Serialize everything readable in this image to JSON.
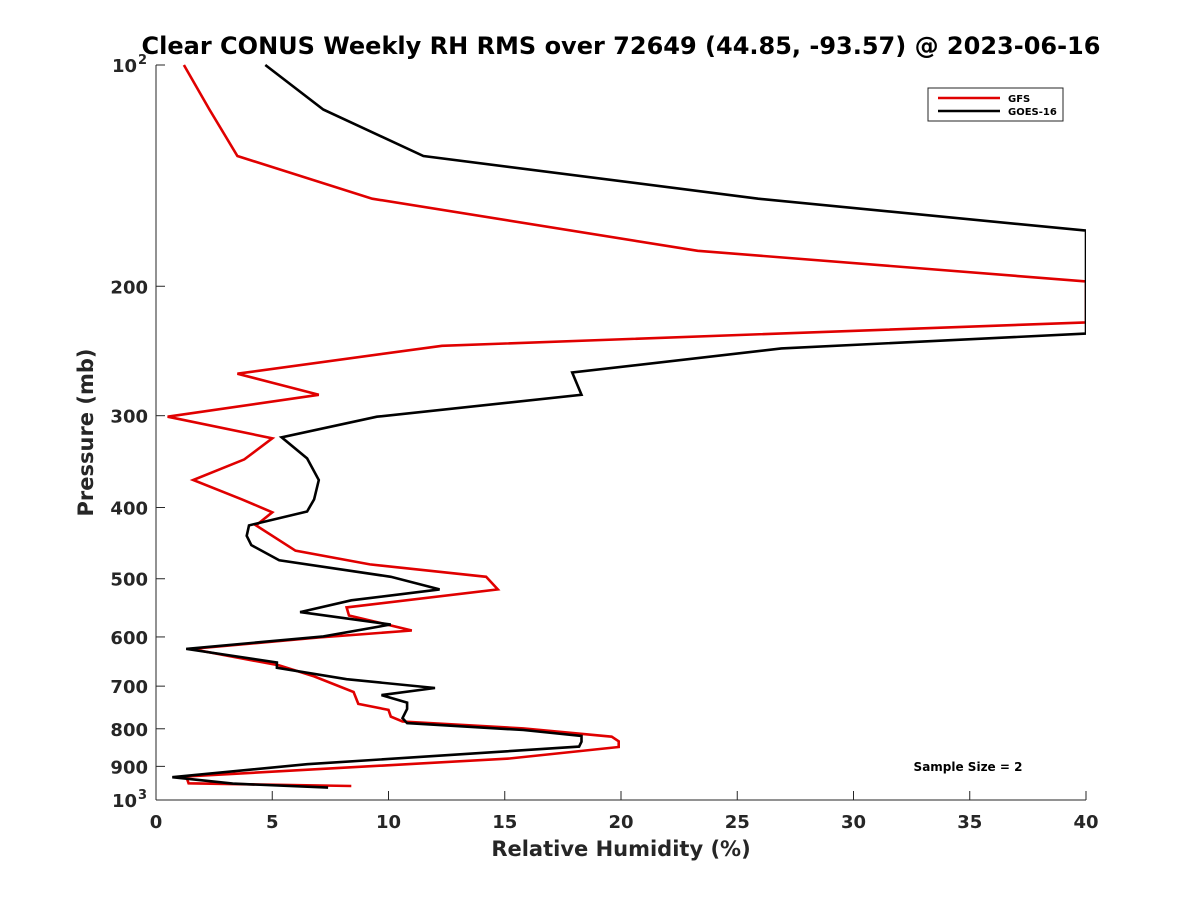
{
  "chart_data": {
    "type": "line",
    "title": "Clear CONUS Weekly RH RMS over 72649 (44.85, -93.57) @ 2023-06-16",
    "xlabel": "Relative Humidity (%)",
    "ylabel": "Pressure (mb)",
    "xlim": [
      0,
      40
    ],
    "ylim": [
      100,
      1000
    ],
    "yscale": "log",
    "y_reversed": true,
    "grid": false,
    "legend_position": "top-right",
    "x_ticks": [
      "0",
      "5",
      "10",
      "15",
      "20",
      "25",
      "30",
      "35",
      "40"
    ],
    "y_ticks": [
      {
        "value": 100,
        "label": "10",
        "exp": "2"
      },
      {
        "value": 200,
        "label": "200",
        "exp": ""
      },
      {
        "value": 300,
        "label": "300",
        "exp": ""
      },
      {
        "value": 400,
        "label": "400",
        "exp": ""
      },
      {
        "value": 500,
        "label": "500",
        "exp": ""
      },
      {
        "value": 600,
        "label": "600",
        "exp": ""
      },
      {
        "value": 700,
        "label": "700",
        "exp": ""
      },
      {
        "value": 800,
        "label": "800",
        "exp": ""
      },
      {
        "value": 900,
        "label": "900",
        "exp": ""
      },
      {
        "value": 1000,
        "label": "10",
        "exp": "3"
      }
    ],
    "annotation": "Sample Size = 2",
    "series": [
      {
        "name": "GFS",
        "color": "#e00000",
        "points": [
          [
            1.2,
            100
          ],
          [
            2.3,
            115
          ],
          [
            3.5,
            133
          ],
          [
            9.3,
            152
          ],
          [
            23.3,
            179
          ],
          [
            40.0,
            197
          ],
          [
            40.0,
            224
          ],
          [
            12.3,
            241
          ],
          [
            3.5,
            263
          ],
          [
            7.0,
            281
          ],
          [
            0.5,
            301
          ],
          [
            5.0,
            322
          ],
          [
            3.8,
            344
          ],
          [
            1.6,
            367
          ],
          [
            3.7,
            390
          ],
          [
            5.0,
            406
          ],
          [
            4.3,
            423
          ],
          [
            6.0,
            458
          ],
          [
            9.2,
            478
          ],
          [
            14.2,
            497
          ],
          [
            14.7,
            517
          ],
          [
            8.2,
            547
          ],
          [
            8.3,
            561
          ],
          [
            11.0,
            588
          ],
          [
            7.0,
            601
          ],
          [
            1.5,
            623
          ],
          [
            5.3,
            656
          ],
          [
            6.8,
            679
          ],
          [
            8.5,
            713
          ],
          [
            8.7,
            740
          ],
          [
            10.0,
            754
          ],
          [
            10.1,
            770
          ],
          [
            10.6,
            782
          ],
          [
            15.8,
            799
          ],
          [
            19.6,
            820
          ],
          [
            19.9,
            832
          ],
          [
            19.9,
            847
          ],
          [
            15.2,
            878
          ],
          [
            1.3,
            929
          ],
          [
            1.4,
            949
          ],
          [
            8.4,
            957
          ]
        ]
      },
      {
        "name": "GOES-16",
        "color": "#000000",
        "points": [
          [
            4.7,
            100
          ],
          [
            7.2,
            115
          ],
          [
            11.5,
            133
          ],
          [
            25.9,
            152
          ],
          [
            40.0,
            168
          ],
          [
            40.0,
            232
          ],
          [
            26.9,
            243
          ],
          [
            17.9,
            262
          ],
          [
            18.3,
            281
          ],
          [
            9.5,
            301
          ],
          [
            5.4,
            321
          ],
          [
            6.5,
            343
          ],
          [
            7.0,
            367
          ],
          [
            6.8,
            390
          ],
          [
            6.5,
            405
          ],
          [
            4.0,
            423
          ],
          [
            3.9,
            437
          ],
          [
            4.1,
            450
          ],
          [
            5.3,
            472
          ],
          [
            10.1,
            497
          ],
          [
            12.2,
            517
          ],
          [
            8.4,
            535
          ],
          [
            6.2,
            555
          ],
          [
            10.1,
            577
          ],
          [
            7.2,
            599
          ],
          [
            1.3,
            623
          ],
          [
            5.2,
            650
          ],
          [
            5.2,
            661
          ],
          [
            8.2,
            685
          ],
          [
            12.0,
            704
          ],
          [
            9.7,
            720
          ],
          [
            10.8,
            737
          ],
          [
            10.8,
            752
          ],
          [
            10.6,
            774
          ],
          [
            10.8,
            786
          ],
          [
            15.8,
            803
          ],
          [
            18.3,
            818
          ],
          [
            18.3,
            833
          ],
          [
            18.2,
            846
          ],
          [
            14.5,
            861
          ],
          [
            6.5,
            894
          ],
          [
            0.7,
            931
          ],
          [
            3.3,
            950
          ],
          [
            7.4,
            962
          ]
        ]
      }
    ]
  }
}
